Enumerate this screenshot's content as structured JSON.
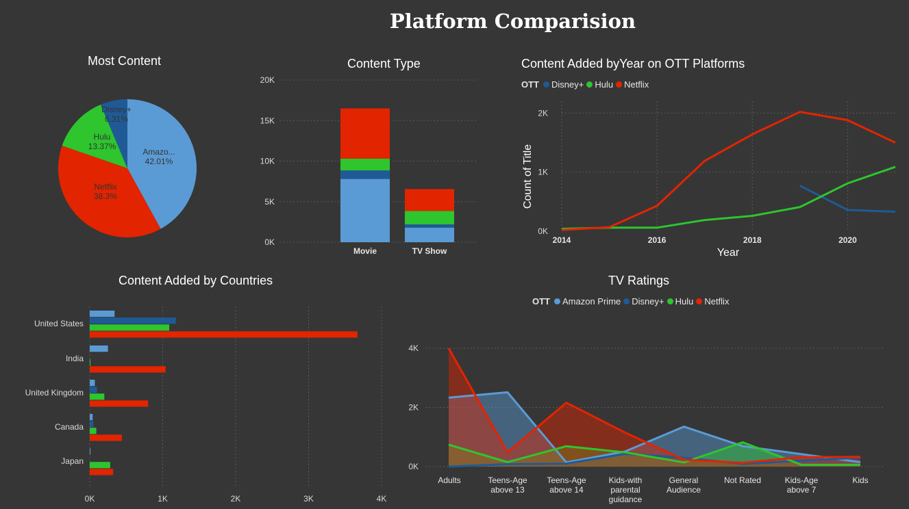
{
  "page": {
    "title": "Platform Comparision"
  },
  "colors": {
    "Amazon Prime": "#5b9bd5",
    "Disney+": "#1f5a96",
    "Hulu": "#2ec52e",
    "Netflix": "#e32400"
  },
  "chart_data": [
    {
      "id": "pie",
      "type": "pie",
      "title": "Most Content",
      "slices": [
        {
          "name": "Amazon Prime",
          "label": "Amazo...",
          "pct_label": "42.01%",
          "value": 42.01
        },
        {
          "name": "Netflix",
          "label": "Netflix",
          "pct_label": "38.3%",
          "value": 38.3
        },
        {
          "name": "Hulu",
          "label": "Hulu",
          "pct_label": "13.37%",
          "value": 13.37
        },
        {
          "name": "Disney+",
          "label": "Disney+",
          "pct_label": "6.31%",
          "value": 6.31
        }
      ]
    },
    {
      "id": "content_type",
      "type": "bar",
      "stacked": true,
      "title": "Content Type",
      "categories": [
        "Movie",
        "TV Show"
      ],
      "yticks": [
        "0K",
        "5K",
        "10K",
        "15K",
        "20K"
      ],
      "ylim": [
        0,
        20000
      ],
      "series": [
        {
          "name": "Amazon Prime",
          "values": [
            7800,
            1800
          ]
        },
        {
          "name": "Disney+",
          "values": [
            1050,
            400
          ]
        },
        {
          "name": "Hulu",
          "values": [
            1450,
            1650
          ]
        },
        {
          "name": "Netflix",
          "values": [
            6200,
            2700
          ]
        }
      ]
    },
    {
      "id": "by_year",
      "type": "line",
      "title": "Content Added byYear on OTT Platforms",
      "legend_title": "OTT",
      "legend": [
        "Disney+",
        "Hulu",
        "Netflix"
      ],
      "xlabel": "Year",
      "ylabel": "Count of Title",
      "xlim": [
        2014,
        2021
      ],
      "ylim": [
        0,
        2200
      ],
      "xticks": [
        "2014",
        "2016",
        "2018",
        "2020"
      ],
      "yticks": [
        "0K",
        "1K",
        "2K"
      ],
      "series": [
        {
          "name": "Disney+",
          "x": [
            2019,
            2020,
            2021
          ],
          "values": [
            770,
            360,
            330
          ]
        },
        {
          "name": "Hulu",
          "x": [
            2014,
            2015,
            2016,
            2017,
            2018,
            2019,
            2020,
            2021
          ],
          "values": [
            40,
            60,
            60,
            190,
            260,
            410,
            810,
            1090
          ]
        },
        {
          "name": "Netflix",
          "x": [
            2014,
            2015,
            2016,
            2017,
            2018,
            2019,
            2020,
            2021
          ],
          "values": [
            20,
            70,
            430,
            1190,
            1640,
            2020,
            1880,
            1500
          ]
        }
      ]
    },
    {
      "id": "countries",
      "type": "bar",
      "orientation": "horizontal",
      "title": "Content Added by Countries",
      "categories": [
        "United States",
        "India",
        "United Kingdom",
        "Canada",
        "Japan"
      ],
      "xticks": [
        "0K",
        "1K",
        "2K",
        "3K",
        "4K"
      ],
      "xlim": [
        0,
        4000
      ],
      "series": [
        {
          "name": "Amazon Prime",
          "values": [
            340,
            250,
            70,
            40,
            10
          ]
        },
        {
          "name": "Disney+",
          "values": [
            1180,
            0,
            100,
            50,
            0
          ]
        },
        {
          "name": "Hulu",
          "values": [
            1090,
            10,
            200,
            90,
            280
          ]
        },
        {
          "name": "Netflix",
          "values": [
            3670,
            1040,
            800,
            440,
            320
          ]
        }
      ]
    },
    {
      "id": "tv_ratings",
      "type": "area",
      "title": "TV Ratings",
      "legend_title": "OTT",
      "legend": [
        "Amazon Prime",
        "Disney+",
        "Hulu",
        "Netflix"
      ],
      "categories": [
        "Adults",
        "Teens-Age above 13",
        "Teens-Age above 14",
        "Kids-with parental guidance",
        "General Audience",
        "Not Rated",
        "Kids-Age above 7",
        "Kids"
      ],
      "category_lines": [
        [
          "Adults"
        ],
        [
          "Teens-Age",
          "above 13"
        ],
        [
          "Teens-Age",
          "above 14"
        ],
        [
          "Kids-with",
          "parental",
          "guidance"
        ],
        [
          "General",
          "Audience"
        ],
        [
          "Not Rated"
        ],
        [
          "Kids-Age",
          "above 7"
        ],
        [
          "Kids"
        ]
      ],
      "yticks": [
        "0K",
        "2K",
        "4K"
      ],
      "ylim": [
        0,
        4000
      ],
      "series": [
        {
          "name": "Amazon Prime",
          "values": [
            2330,
            2510,
            140,
            510,
            1350,
            690,
            420,
            150
          ]
        },
        {
          "name": "Disney+",
          "values": [
            0,
            80,
            100,
            430,
            300,
            90,
            200,
            300
          ]
        },
        {
          "name": "Hulu",
          "values": [
            740,
            150,
            690,
            480,
            140,
            820,
            60,
            60
          ]
        },
        {
          "name": "Netflix",
          "values": [
            4000,
            480,
            2160,
            1150,
            230,
            130,
            320,
            330
          ]
        }
      ]
    }
  ]
}
